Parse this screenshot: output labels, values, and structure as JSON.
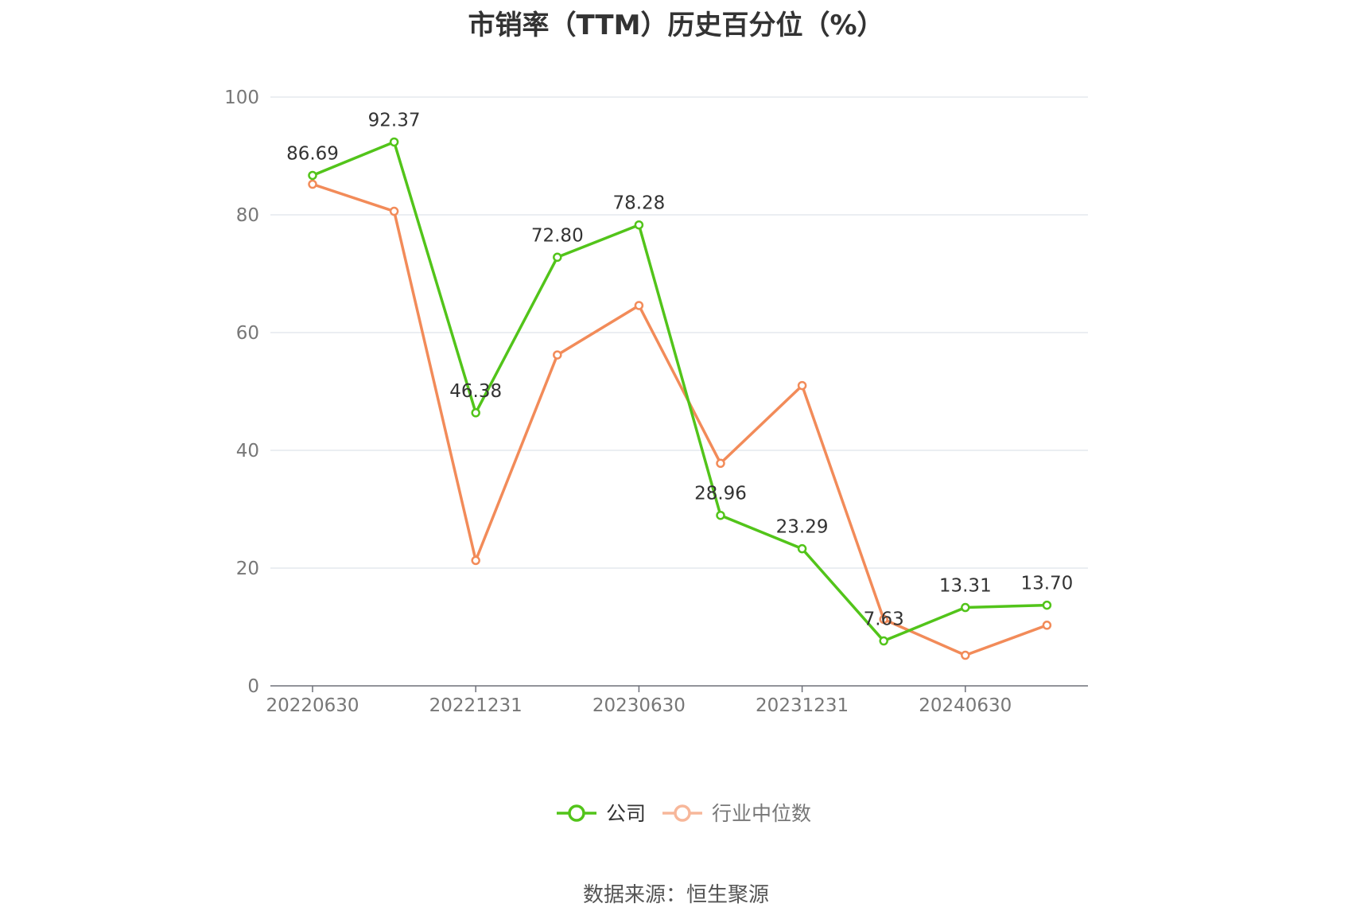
{
  "chart_data": {
    "type": "line",
    "title": "市销率（TTM）历史百分位（%）",
    "x": [
      "20220630",
      "20220930",
      "20221231",
      "20230331",
      "20230630",
      "20230930",
      "20231231",
      "20240331",
      "20240630",
      "20240930"
    ],
    "x_tick_labels": [
      "20220630",
      "20221231",
      "20230630",
      "20231231",
      "20240630"
    ],
    "ylim": [
      0,
      100
    ],
    "y_ticks": [
      0,
      20,
      40,
      60,
      80,
      100
    ],
    "grid": true,
    "legend_position": "bottom-center",
    "series": [
      {
        "name": "公司",
        "color": "#52c41a",
        "values": [
          86.69,
          92.37,
          46.38,
          72.8,
          78.28,
          28.96,
          23.29,
          7.63,
          13.31,
          13.7
        ],
        "data_labels": [
          "86.69",
          "92.37",
          "46.38",
          "72.80",
          "78.28",
          "28.96",
          "23.29",
          "7.63",
          "13.31",
          "13.70"
        ]
      },
      {
        "name": "行业中位数",
        "color": "#f28b59",
        "values": [
          85.2,
          80.6,
          21.3,
          56.2,
          64.6,
          37.8,
          51.0,
          11.3,
          5.2,
          10.3
        ]
      }
    ]
  },
  "source": "数据来源：恒生聚源"
}
